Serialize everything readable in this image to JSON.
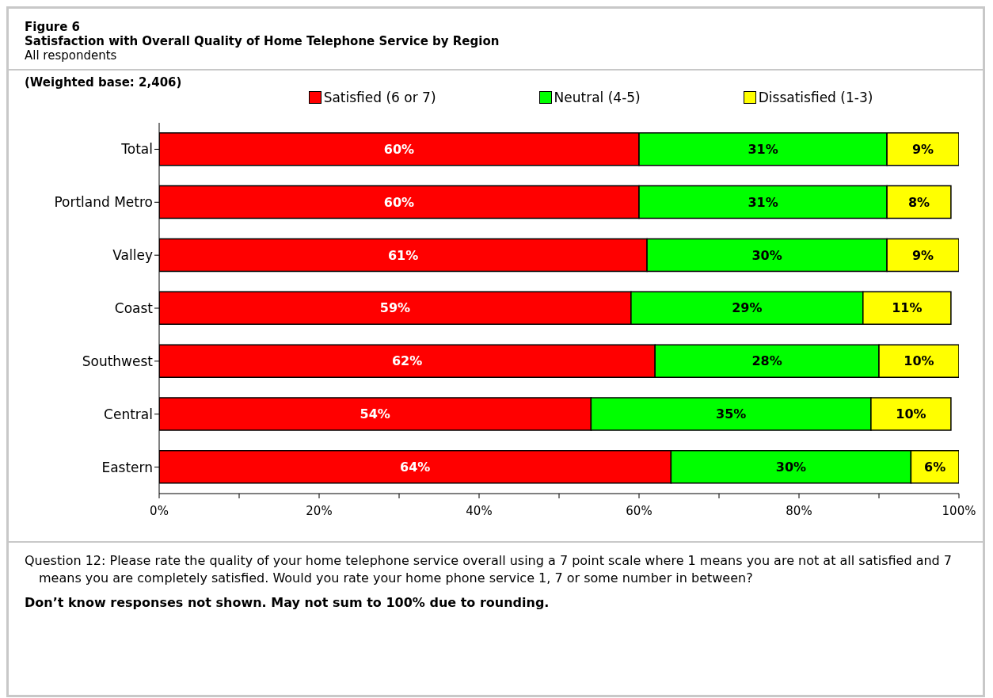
{
  "chart_data": {
    "type": "bar",
    "orientation": "horizontal",
    "stacked": true,
    "title": "Figure 6",
    "subtitle": "Satisfaction with Overall Quality of Home Telephone Service by Region",
    "annotations": [
      "All respondents",
      "(Weighted base:  2,406)",
      "Question 12:  Please rate the quality of your home telephone service overall using a 7 point scale where 1 means you are not at all satisfied and 7 means you are completely satisfied.  Would you rate your home phone service 1, 7 or some number in between?",
      "Don’t know responses not shown.  May not sum to 100% due to rounding."
    ],
    "categories": [
      "Total",
      "Portland Metro",
      "Valley",
      "Coast",
      "Southwest",
      "Central",
      "Eastern"
    ],
    "series": [
      {
        "name": "Satisfied (6 or 7)",
        "color": "#ff0000",
        "values": [
          60,
          60,
          61,
          59,
          62,
          54,
          64
        ],
        "value_labels": [
          "60%",
          "60%",
          "61%",
          "59%",
          "62%",
          "54%",
          "64%"
        ]
      },
      {
        "name": "Neutral (4-5)",
        "color": "#00ff00",
        "values": [
          31,
          31,
          30,
          29,
          28,
          35,
          30
        ],
        "value_labels": [
          "31%",
          "31%",
          "30%",
          "29%",
          "28%",
          "35%",
          "30%"
        ]
      },
      {
        "name": "Dissatisfied (1-3)",
        "color": "#ffff00",
        "values": [
          9,
          8,
          9,
          11,
          10,
          10,
          6
        ],
        "value_labels": [
          "9%",
          "8%",
          "9%",
          "11%",
          "10%",
          "10%",
          "6%"
        ]
      }
    ],
    "xlim": [
      0,
      100
    ],
    "xticks": [
      {
        "value": 0,
        "label": "0%"
      },
      {
        "value": 10,
        "label": null
      },
      {
        "value": 20,
        "label": "20%"
      },
      {
        "value": 30,
        "label": null
      },
      {
        "value": 40,
        "label": "40%"
      },
      {
        "value": 50,
        "label": null
      },
      {
        "value": 60,
        "label": "60%"
      },
      {
        "value": 70,
        "label": null
      },
      {
        "value": 80,
        "label": "80%"
      },
      {
        "value": 90,
        "label": null
      },
      {
        "value": 100,
        "label": "100%"
      }
    ],
    "grid": false,
    "legend": "top"
  }
}
